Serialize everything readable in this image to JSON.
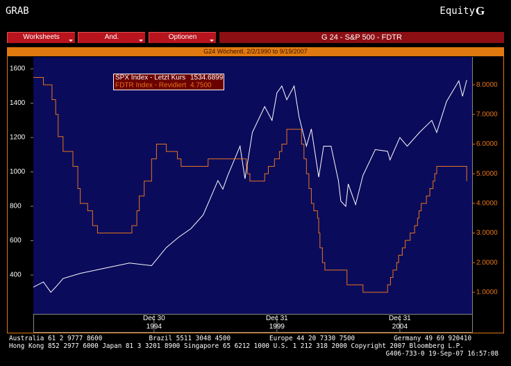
{
  "header": {
    "left": "GRAB",
    "right": "Equity",
    "right_bold": "G"
  },
  "menu": {
    "buttons": [
      "Worksheets",
      "And.",
      "Optionen"
    ],
    "title": "G 24 - S&P 500 - FDTR"
  },
  "subtitle": "G24 Wöchentl. 2/2/1990 to 9/19/2007",
  "chart_data": {
    "type": "line",
    "xlim": [
      1990.09,
      2007.94
    ],
    "xticks": [
      {
        "value": 1995.0,
        "label": "Dec 30\n1994"
      },
      {
        "value": 2000.0,
        "label": "Dec 31\n1999"
      },
      {
        "value": 2005.0,
        "label": "Dec 31\n2004"
      }
    ],
    "ylim": [
      174,
      1669
    ],
    "yticks": [
      400,
      600,
      800,
      1000,
      1200,
      1400,
      1600
    ],
    "y2lim": [
      0.27,
      8.94
    ],
    "y2ticks": [
      {
        "value": 1,
        "label": "1.0000"
      },
      {
        "value": 2,
        "label": "2.0000"
      },
      {
        "value": 3,
        "label": "3.0000"
      },
      {
        "value": 4,
        "label": "4.0000"
      },
      {
        "value": 5,
        "label": "5.0000"
      },
      {
        "value": 6,
        "label": "6.0000"
      },
      {
        "value": 7,
        "label": "7.0000"
      },
      {
        "value": 8,
        "label": "8.0000"
      }
    ],
    "series": [
      {
        "name": "SPX Index - Letzt Kurs",
        "legend_value": "1534.6899",
        "color": "#ffffff",
        "axis": "y",
        "x": [
          1990.09,
          1990.5,
          1990.8,
          1991.0,
          1991.3,
          1992.0,
          1993.0,
          1994.0,
          1994.9,
          1995.5,
          1996.0,
          1996.5,
          1997.0,
          1997.6,
          1997.8,
          1998.0,
          1998.5,
          1998.7,
          1999.0,
          1999.5,
          1999.8,
          2000.0,
          2000.2,
          2000.4,
          2000.7,
          2000.9,
          2001.2,
          2001.4,
          2001.7,
          2001.9,
          2002.2,
          2002.5,
          2002.6,
          2002.8,
          2002.9,
          2003.2,
          2003.5,
          2004.0,
          2004.5,
          2004.6,
          2005.0,
          2005.3,
          2005.8,
          2006.3,
          2006.5,
          2006.9,
          2007.4,
          2007.55,
          2007.72
        ],
        "values": [
          330,
          360,
          300,
          330,
          380,
          410,
          440,
          470,
          455,
          560,
          620,
          670,
          750,
          950,
          900,
          980,
          1150,
          960,
          1230,
          1380,
          1300,
          1460,
          1500,
          1420,
          1500,
          1320,
          1150,
          1250,
          970,
          1150,
          1150,
          950,
          830,
          800,
          930,
          810,
          980,
          1130,
          1120,
          1070,
          1200,
          1150,
          1230,
          1300,
          1230,
          1410,
          1530,
          1440,
          1534.6899
        ]
      },
      {
        "name": "FDTR Index - Revidiert",
        "legend_value": "4.7500",
        "color": "#e8751a",
        "axis": "y2",
        "step": "after",
        "x": [
          1990.09,
          1990.5,
          1990.85,
          1991.0,
          1991.1,
          1991.3,
          1991.7,
          1991.9,
          1992.0,
          1992.3,
          1992.5,
          1992.7,
          1994.1,
          1994.3,
          1994.4,
          1994.6,
          1994.9,
          1995.1,
          1995.5,
          1995.95,
          1996.1,
          1997.2,
          1998.75,
          1998.8,
          1998.9,
          1999.5,
          1999.65,
          1999.9,
          2000.1,
          2000.2,
          2000.4,
          2001.0,
          2001.1,
          2001.2,
          2001.3,
          2001.4,
          2001.5,
          2001.65,
          2001.7,
          2001.75,
          2001.85,
          2001.95,
          2002.85,
          2003.5,
          2004.5,
          2004.62,
          2004.72,
          2004.87,
          2004.95,
          2005.1,
          2005.22,
          2005.42,
          2005.6,
          2005.72,
          2005.78,
          2005.87,
          2006.08,
          2006.22,
          2006.35,
          2006.42,
          2006.5,
          2007.72
        ],
        "values": [
          8.25,
          8.0,
          7.5,
          7.0,
          6.25,
          5.75,
          5.25,
          4.5,
          4.0,
          3.75,
          3.25,
          3.0,
          3.25,
          3.75,
          4.25,
          4.75,
          5.5,
          6.0,
          5.75,
          5.5,
          5.25,
          5.5,
          5.25,
          5.0,
          4.75,
          5.0,
          5.25,
          5.5,
          5.75,
          6.0,
          6.5,
          6.0,
          5.5,
          5.0,
          4.5,
          4.0,
          3.75,
          3.5,
          3.0,
          2.5,
          2.0,
          1.75,
          1.25,
          1.0,
          1.25,
          1.5,
          1.75,
          2.0,
          2.25,
          2.5,
          2.75,
          3.0,
          3.25,
          3.5,
          3.75,
          4.0,
          4.25,
          4.5,
          4.75,
          5.0,
          5.25,
          4.75
        ]
      }
    ]
  },
  "footer": [
    "Australia 61 2 9777 8600            Brazil 5511 3048 4500          Europe 44 20 7330 7500          Germany 49 69 920410",
    "Hong Kong 852 2977 6000 Japan 81 3 3201 8900 Singapore 65 6212 1000 U.S. 1 212 318 2000 Copyright 2007 Bloomberg L.P.",
    "G406-733-0 19-Sep-07 16:57:08"
  ]
}
